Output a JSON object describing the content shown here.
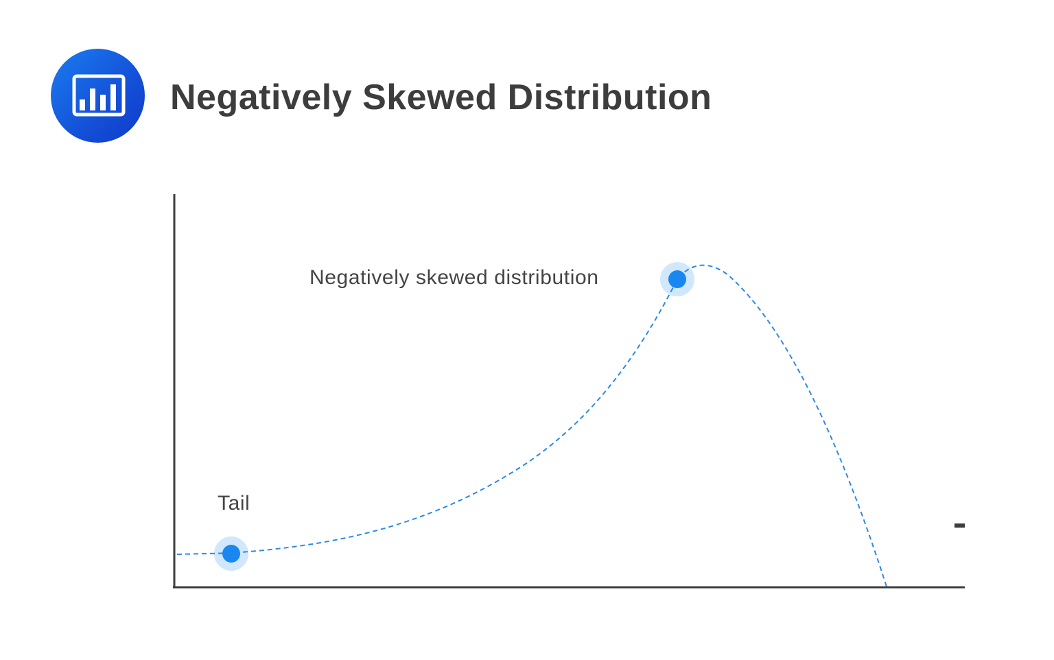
{
  "title": "Negatively Skewed Distribution",
  "icon": "bar-chart-icon",
  "labels": {
    "peak": "Negatively skewed distribution",
    "tail": "Tail",
    "right_mark": "-"
  },
  "colors": {
    "accent": "#1a86f0",
    "curve": "#2a8ae6",
    "axis": "#3d3d3d",
    "title": "#3d3d3d"
  }
}
